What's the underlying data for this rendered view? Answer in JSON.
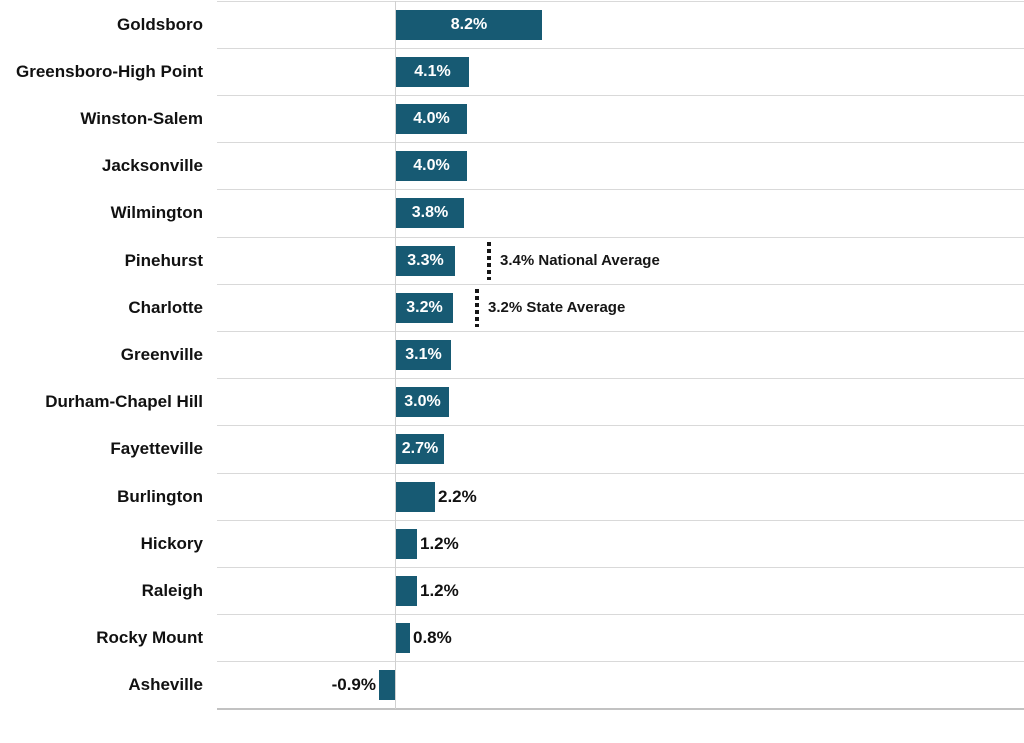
{
  "chart_data": {
    "type": "bar",
    "orientation": "horizontal",
    "title": "",
    "xlabel": "",
    "ylabel": "",
    "unit": "percent",
    "legend": "none",
    "grid": "horizontal-row-separators",
    "xlim": [
      -10,
      35.3
    ],
    "categories": [
      "Goldsboro",
      "Greensboro-High Point",
      "Winston-Salem",
      "Jacksonville",
      "Wilmington",
      "Pinehurst",
      "Charlotte",
      "Greenville",
      "Durham-Chapel Hill",
      "Fayetteville",
      "Burlington",
      "Hickory",
      "Raleigh",
      "Rocky Mount",
      "Asheville"
    ],
    "values": [
      8.2,
      4.1,
      4.0,
      4.0,
      3.8,
      3.3,
      3.2,
      3.1,
      3.0,
      2.7,
      2.2,
      1.2,
      1.2,
      0.8,
      -0.9
    ],
    "value_labels": [
      "8.2%",
      "4.1%",
      "4.0%",
      "4.0%",
      "3.8%",
      "3.3%",
      "3.2%",
      "3.1%",
      "3.0%",
      "2.7%",
      "2.2%",
      "1.2%",
      "1.2%",
      "0.8%",
      "-0.9%"
    ],
    "annotations": [
      {
        "id": "national-average",
        "label": "3.4% National Average",
        "value": 3.4,
        "row": "Pinehurst",
        "line_x": 487,
        "text_x": 500
      },
      {
        "id": "state-average",
        "label": "3.2% State Average",
        "value": 3.2,
        "row": "Charlotte",
        "line_x": 475,
        "text_x": 488
      }
    ],
    "colors": {
      "bar": "#175A73",
      "inside_label": "#FFFFFF",
      "outside_label": "#111111",
      "category_label": "#111111",
      "gridline": "#D9D9D9",
      "axis_line": "#D0D0D0",
      "baseline": "#C2C2C2",
      "annotation": "#161616",
      "background": "#FFFFFF"
    }
  }
}
